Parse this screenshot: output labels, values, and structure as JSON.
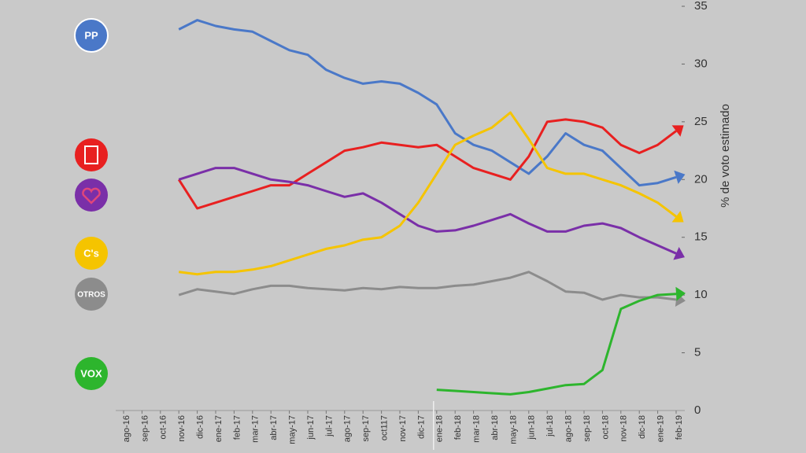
{
  "chart_data": {
    "type": "line",
    "y_axis_label": "% de voto estimado",
    "categories": [
      "ago-16",
      "sep-16",
      "oct-16",
      "nov-16",
      "dic-16",
      "ene-17",
      "feb-17",
      "mar-17",
      "abr-17",
      "may-17",
      "jun-17",
      "jul-17",
      "ago-17",
      "sep-17",
      "oct117",
      "nov-17",
      "dic-17",
      "ene-18",
      "feb-18",
      "mar-18",
      "abr-18",
      "may-18",
      "jun-18",
      "jul-18",
      "ago-18",
      "sep-18",
      "oct-18",
      "nov-18",
      "dic-18",
      "ene-19",
      "feb-19"
    ],
    "ylim": [
      0,
      35
    ],
    "yticks": [
      0,
      5,
      10,
      15,
      20,
      25,
      30,
      35
    ],
    "y_axis_side": "right",
    "series": [
      {
        "name": "PP",
        "color": "#4a78c8",
        "values": [
          null,
          null,
          null,
          33,
          33.8,
          33.3,
          33,
          32.8,
          32,
          31.2,
          30.8,
          29.5,
          28.8,
          28.3,
          28.5,
          28.3,
          27.5,
          26.5,
          24,
          23,
          22.5,
          21.5,
          20.5,
          22,
          24,
          23,
          22.5,
          21,
          19.5,
          19.7,
          20.2
        ]
      },
      {
        "color": "#e82020",
        "values": [
          null,
          null,
          null,
          20,
          17.5,
          18,
          18.5,
          19,
          19.5,
          19.5,
          20.5,
          21.5,
          22.5,
          22.8,
          23.2,
          23,
          22.8,
          23,
          22,
          21,
          20.5,
          20,
          22,
          25,
          25.2,
          25,
          24.5,
          23,
          22.3,
          23,
          24.2
        ]
      },
      {
        "color": "#7a2fa8",
        "values": [
          null,
          null,
          null,
          20,
          20.5,
          21,
          21,
          20.5,
          20,
          19.8,
          19.5,
          19,
          18.5,
          18.8,
          18,
          17,
          16,
          15.5,
          15.6,
          16,
          16.5,
          17,
          16.2,
          15.5,
          15.5,
          16,
          16.2,
          15.8,
          15,
          14.3,
          13.6
        ]
      },
      {
        "name": "C's",
        "color": "#f5c400",
        "values": [
          null,
          null,
          null,
          12,
          11.8,
          12,
          12,
          12.2,
          12.5,
          13,
          13.5,
          14,
          14.3,
          14.8,
          15,
          16,
          18,
          20.5,
          23,
          23.8,
          24.5,
          25.8,
          23.5,
          21,
          20.5,
          20.5,
          20,
          19.5,
          18.8,
          18,
          16.8
        ]
      },
      {
        "name": "OTROS",
        "color": "#8c8c8c",
        "values": [
          null,
          null,
          null,
          10,
          10.5,
          10.3,
          10.1,
          10.5,
          10.8,
          10.8,
          10.6,
          10.5,
          10.4,
          10.6,
          10.5,
          10.7,
          10.6,
          10.6,
          10.8,
          10.9,
          11.2,
          11.5,
          12,
          11.2,
          10.3,
          10.2,
          9.6,
          10,
          9.8,
          9.8,
          9.6
        ]
      },
      {
        "name": "VOX",
        "color": "#2db52d",
        "values": [
          null,
          null,
          null,
          null,
          null,
          null,
          null,
          null,
          null,
          null,
          null,
          null,
          null,
          null,
          null,
          null,
          null,
          1.8,
          1.7,
          1.6,
          1.5,
          1.4,
          1.6,
          1.9,
          2.2,
          2.3,
          3.5,
          8.8,
          9.5,
          10,
          10.1
        ]
      }
    ]
  }
}
